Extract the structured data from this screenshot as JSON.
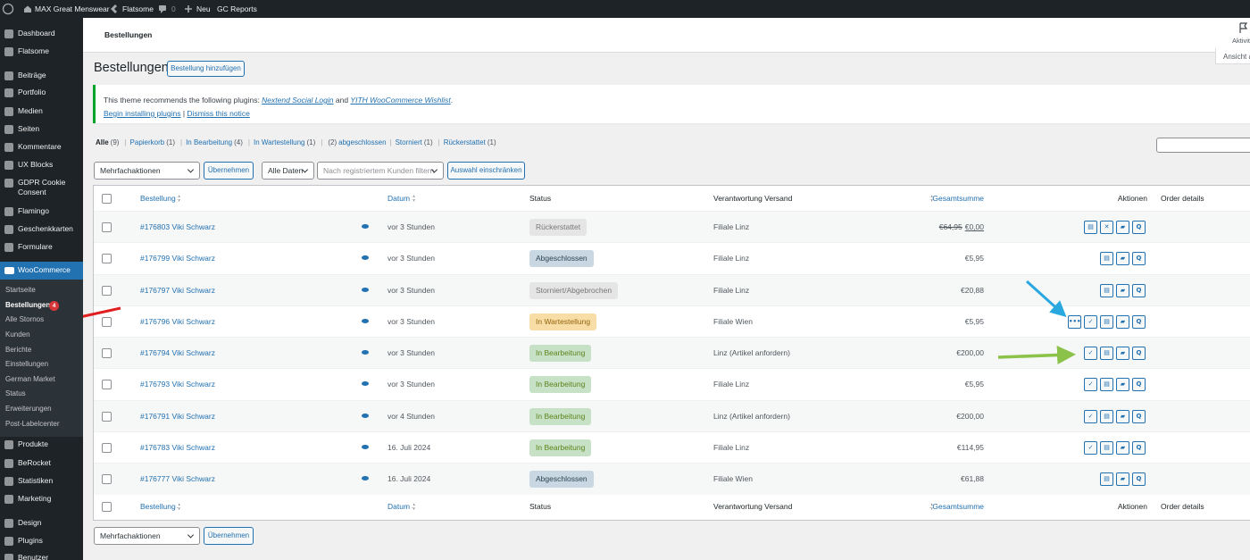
{
  "admin_bar": {
    "site": "MAX Great Menswear",
    "theme": "Flatsome",
    "comments": "0",
    "new": "Neu",
    "reports": "GC Reports"
  },
  "sidebar": {
    "menu_top": [
      "Dashboard",
      "Flatsome",
      "Beiträge",
      "Portfolio",
      "Medien",
      "Seiten",
      "Kommentare",
      "UX Blocks",
      "GDPR Cookie Consent",
      "Flamingo",
      "Geschenkkarten",
      "Formulare"
    ],
    "woocommerce": "WooCommerce",
    "submenu": [
      "Startseite",
      "Bestellungen",
      "Alle Stornos",
      "Kunden",
      "Berichte",
      "Einstellungen",
      "German Market",
      "Status",
      "Erweiterungen",
      "Post-Labelcenter"
    ],
    "badge": "4",
    "menu_bottom": [
      "Produkte",
      "BeRocket",
      "Statistiken",
      "Marketing",
      "Design",
      "Plugins",
      "Benutzer"
    ]
  },
  "header": {
    "title": "Bestellungen",
    "activity": "Aktivit",
    "screen_options": "Ansicht a"
  },
  "page": {
    "title": "Bestellungen",
    "add_button": "Bestellung hinzufügen"
  },
  "notice": {
    "line1": {
      "text": "This theme recommends the following plugins: ",
      "link1": "Nextend Social Login",
      "and": " and ",
      "link2": "YITH WooCommerce Wishlist",
      "end": "."
    },
    "line2": {
      "link1": "Begin installing plugins",
      "sep": " | ",
      "link2": "Dismiss this notice"
    }
  },
  "filters": {
    "views": [
      {
        "label": "Alle",
        "count": "(9)",
        "current": true
      },
      {
        "label": "Papierkorb",
        "count": "(1)"
      },
      {
        "label": "In Bearbeitung",
        "count": "(4)"
      },
      {
        "label": "In Wartestellung",
        "count": "(1)"
      },
      {
        "count": "(2)",
        "label": "abgeschlossen"
      },
      {
        "label": "Storniert",
        "count": "(1)"
      },
      {
        "label": "Rückerstattet",
        "count": "(1)"
      }
    ],
    "separator": "|",
    "bulk_select": "Mehrfachaktionen",
    "apply": "Übernehmen",
    "date_select": "Alle Daten",
    "customer_placeholder": "Nach registriertem Kunden filtern",
    "filter_button": "Auswahl einschränken"
  },
  "table": {
    "columns": [
      "Bestellung",
      "Datum",
      "Status",
      "Verantwortung Versand",
      "Gesamtsumme",
      "Aktionen",
      "Order details"
    ],
    "rows": [
      {
        "order": "#176803 Viki Schwarz",
        "date": "vor 3 Stunden",
        "status": "Rückerstattet",
        "status_bg": "#e5e5e5",
        "status_fg": "#777777",
        "shipping": "Filiale Linz",
        "total_old": "€64,95",
        "total": "€0,00",
        "actions": [
          "▤",
          "✕",
          "▰",
          "Q"
        ]
      },
      {
        "order": "#176799 Viki Schwarz",
        "date": "vor 3 Stunden",
        "status": "Abgeschlossen",
        "status_bg": "#c8d7e1",
        "status_fg": "#2e4453",
        "shipping": "Filiale Linz",
        "total": "€5,95",
        "actions": [
          "▤",
          "▰",
          "Q"
        ]
      },
      {
        "order": "#176797 Viki Schwarz",
        "date": "vor 3 Stunden",
        "status": "Storniert/Abgebrochen",
        "status_bg": "#e5e5e5",
        "status_fg": "#777777",
        "shipping": "Filiale Linz",
        "total": "€20,88",
        "actions": [
          "▤",
          "▰",
          "Q"
        ]
      },
      {
        "order": "#176796 Viki Schwarz",
        "date": "vor 3 Stunden",
        "status": "In Wartestellung",
        "status_bg": "#f8dda7",
        "status_fg": "#94660c",
        "shipping": "Filiale Wien",
        "total": "€5,95",
        "actions": [
          "•••",
          "✓",
          "▤",
          "▰",
          "Q"
        ]
      },
      {
        "order": "#176794 Viki Schwarz",
        "date": "vor 3 Stunden",
        "status": "In Bearbeitung",
        "status_bg": "#c6e1c6",
        "status_fg": "#5b841b",
        "shipping": "Linz (Artikel anfordern)",
        "total": "€200,00",
        "actions": [
          "✓",
          "▤",
          "▰",
          "Q"
        ]
      },
      {
        "order": "#176793 Viki Schwarz",
        "date": "vor 3 Stunden",
        "status": "In Bearbeitung",
        "status_bg": "#c6e1c6",
        "status_fg": "#5b841b",
        "shipping": "Filiale Linz",
        "total": "€5,95",
        "actions": [
          "✓",
          "▤",
          "▰",
          "Q"
        ]
      },
      {
        "order": "#176791 Viki Schwarz",
        "date": "vor 4 Stunden",
        "status": "In Bearbeitung",
        "status_bg": "#c6e1c6",
        "status_fg": "#5b841b",
        "shipping": "Linz (Artikel anfordern)",
        "total": "€200,00",
        "actions": [
          "✓",
          "▤",
          "▰",
          "Q"
        ]
      },
      {
        "order": "#176783 Viki Schwarz",
        "date": "16. Juli 2024",
        "status": "In Bearbeitung",
        "status_bg": "#c6e1c6",
        "status_fg": "#5b841b",
        "shipping": "Filiale Linz",
        "total": "€114,95",
        "actions": [
          "✓",
          "▤",
          "▰",
          "Q"
        ]
      },
      {
        "order": "#176777 Viki Schwarz",
        "date": "16. Juli 2024",
        "status": "Abgeschlossen",
        "status_bg": "#c8d7e1",
        "status_fg": "#2e4453",
        "shipping": "Filiale Wien",
        "total": "€61,88",
        "actions": [
          "▤",
          "▰",
          "Q"
        ]
      }
    ]
  },
  "footer_bulk": {
    "bulk_select": "Mehrfachaktionen",
    "apply": "Übernehmen"
  }
}
